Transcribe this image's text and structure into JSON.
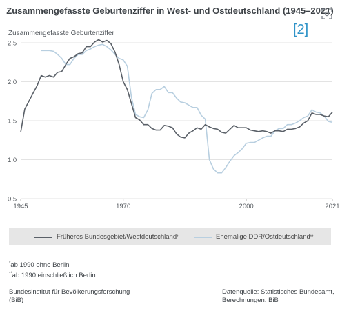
{
  "header": {
    "title": "Zusammengefasste Geburtenziffer in West- und Ostdeutschland (1945–2021)",
    "ref": "[2]",
    "expand_icon": "expand-icon"
  },
  "chart_data": {
    "type": "line",
    "ylabel": "Zusammengefasste Geburtenziffer",
    "xlabel": "",
    "xlim": [
      1945,
      2021
    ],
    "ylim": [
      0.5,
      2.5
    ],
    "x_ticks": [
      "1945",
      "1970",
      "2000",
      "2021"
    ],
    "y_ticks": [
      "2,5",
      "2,0",
      "1,5",
      "1,0",
      "0,5"
    ],
    "grid": true,
    "series": [
      {
        "name": "Früheres Bundesgebiet/Westdeutschland",
        "color": "#5a6068",
        "x": [
          1945,
          1946,
          1947,
          1948,
          1949,
          1950,
          1951,
          1952,
          1953,
          1954,
          1955,
          1956,
          1957,
          1958,
          1959,
          1960,
          1961,
          1962,
          1963,
          1964,
          1965,
          1966,
          1967,
          1968,
          1969,
          1970,
          1971,
          1972,
          1973,
          1974,
          1975,
          1976,
          1977,
          1978,
          1979,
          1980,
          1981,
          1982,
          1983,
          1984,
          1985,
          1986,
          1987,
          1988,
          1989,
          1990,
          1991,
          1992,
          1993,
          1994,
          1995,
          1996,
          1997,
          1998,
          1999,
          2000,
          2001,
          2002,
          2003,
          2004,
          2005,
          2006,
          2007,
          2008,
          2009,
          2010,
          2011,
          2012,
          2013,
          2014,
          2015,
          2016,
          2017,
          2018,
          2019,
          2020,
          2021
        ],
        "values": [
          1.35,
          1.65,
          1.75,
          1.85,
          1.95,
          2.08,
          2.06,
          2.08,
          2.06,
          2.12,
          2.13,
          2.22,
          2.3,
          2.32,
          2.36,
          2.37,
          2.45,
          2.45,
          2.51,
          2.54,
          2.51,
          2.53,
          2.49,
          2.38,
          2.22,
          2.0,
          1.9,
          1.72,
          1.54,
          1.51,
          1.45,
          1.45,
          1.4,
          1.38,
          1.38,
          1.44,
          1.43,
          1.41,
          1.33,
          1.29,
          1.28,
          1.34,
          1.37,
          1.41,
          1.39,
          1.45,
          1.42,
          1.4,
          1.39,
          1.35,
          1.34,
          1.39,
          1.44,
          1.41,
          1.41,
          1.41,
          1.38,
          1.37,
          1.36,
          1.37,
          1.36,
          1.34,
          1.37,
          1.37,
          1.36,
          1.39,
          1.39,
          1.4,
          1.42,
          1.47,
          1.5,
          1.6,
          1.58,
          1.58,
          1.56,
          1.55,
          1.61
        ]
      },
      {
        "name": "Ehemalige DDR/Ostdeutschland",
        "color": "#b8cfe0",
        "x": [
          1950,
          1951,
          1952,
          1953,
          1954,
          1955,
          1956,
          1957,
          1958,
          1959,
          1960,
          1961,
          1962,
          1963,
          1964,
          1965,
          1966,
          1967,
          1968,
          1969,
          1970,
          1971,
          1972,
          1973,
          1974,
          1975,
          1976,
          1977,
          1978,
          1979,
          1980,
          1981,
          1982,
          1983,
          1984,
          1985,
          1986,
          1987,
          1988,
          1989,
          1990,
          1991,
          1992,
          1993,
          1994,
          1995,
          1996,
          1997,
          1998,
          1999,
          2000,
          2001,
          2002,
          2003,
          2004,
          2005,
          2006,
          2007,
          2008,
          2009,
          2010,
          2011,
          2012,
          2013,
          2014,
          2015,
          2016,
          2017,
          2018,
          2019,
          2020,
          2021
        ],
        "values": [
          2.4,
          2.4,
          2.4,
          2.39,
          2.35,
          2.3,
          2.22,
          2.22,
          2.3,
          2.35,
          2.35,
          2.4,
          2.42,
          2.45,
          2.47,
          2.48,
          2.45,
          2.41,
          2.35,
          2.3,
          2.28,
          2.2,
          1.8,
          1.58,
          1.55,
          1.54,
          1.64,
          1.85,
          1.9,
          1.9,
          1.94,
          1.86,
          1.86,
          1.79,
          1.74,
          1.73,
          1.7,
          1.67,
          1.67,
          1.57,
          1.52,
          1.0,
          0.88,
          0.83,
          0.83,
          0.9,
          0.98,
          1.05,
          1.09,
          1.14,
          1.21,
          1.22,
          1.22,
          1.25,
          1.28,
          1.3,
          1.3,
          1.37,
          1.4,
          1.4,
          1.45,
          1.45,
          1.47,
          1.5,
          1.54,
          1.56,
          1.64,
          1.61,
          1.6,
          1.56,
          1.49,
          1.48
        ]
      }
    ]
  },
  "legend": {
    "west": "Früheres Bundesgebiet/Westdeutschland",
    "west_mark": "*",
    "east": "Ehemalige DDR/Ostdeutschland",
    "east_mark": "**"
  },
  "footnotes": {
    "note1_mark": "*",
    "note1": "ab 1990 ohne Berlin",
    "note2_mark": "**",
    "note2": "ab 1990 einschließlich Berlin"
  },
  "footer": {
    "left_line1": "Bundesinstitut für Bevölkerungsforschung",
    "left_line2": "(BiB)",
    "right_line1": "Datenquelle: Statistisches Bundesamt,",
    "right_line2": "Berechnungen: BiB"
  }
}
